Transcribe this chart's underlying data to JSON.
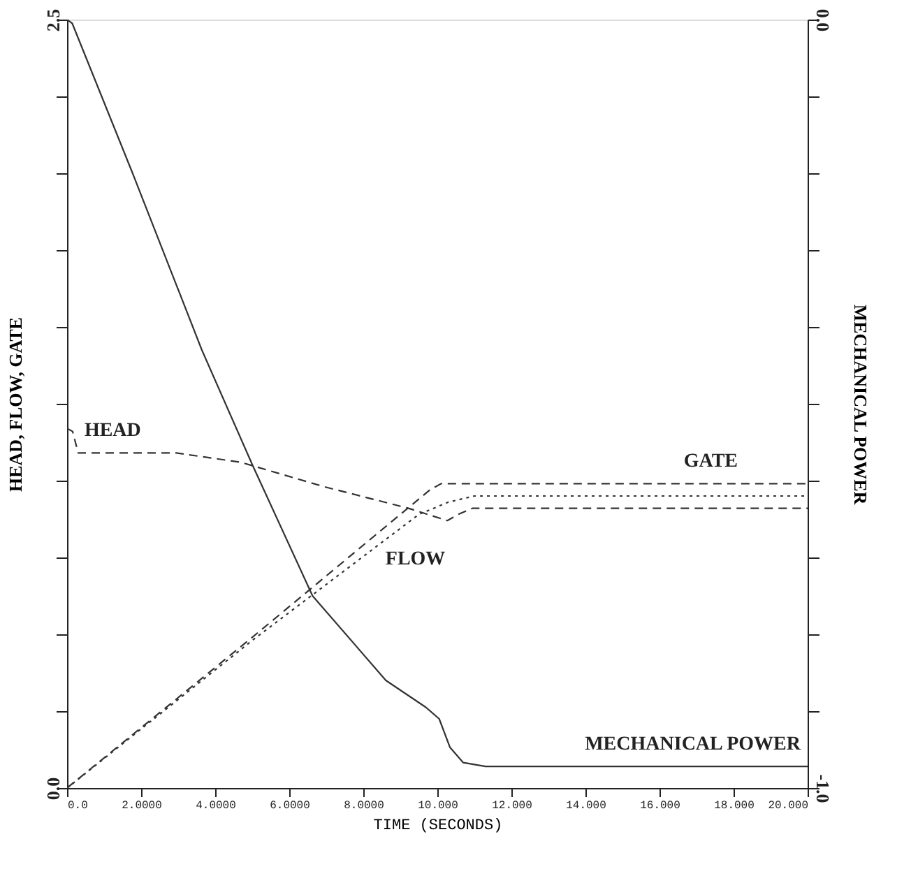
{
  "chart_data": {
    "type": "line",
    "xlabel": "TIME  (SECONDS)",
    "ylabel": "HEAD, FLOW, GATE",
    "y2label": "MECHANICAL POWER",
    "xlim": [
      0,
      20
    ],
    "xticks": [
      {
        "value": 0,
        "label": "0.0"
      },
      {
        "value": 2,
        "label": "2.0000"
      },
      {
        "value": 4,
        "label": "4.0000"
      },
      {
        "value": 6,
        "label": "6.0000"
      },
      {
        "value": 8,
        "label": "8.0000"
      },
      {
        "value": 10,
        "label": "10.000"
      },
      {
        "value": 12,
        "label": "12.000"
      },
      {
        "value": 14,
        "label": "14.000"
      },
      {
        "value": 16,
        "label": "16.000"
      },
      {
        "value": 18,
        "label": "18.000"
      },
      {
        "value": 20,
        "label": "20.000"
      }
    ],
    "ylim": [
      0,
      2.5
    ],
    "yticks": [
      {
        "value": 0,
        "label": "0.0"
      },
      {
        "value": 0.25,
        "label": null
      },
      {
        "value": 0.5,
        "label": null
      },
      {
        "value": 0.75,
        "label": null
      },
      {
        "value": 1.0,
        "label": null
      },
      {
        "value": 1.25,
        "label": null
      },
      {
        "value": 1.5,
        "label": null
      },
      {
        "value": 1.75,
        "label": null
      },
      {
        "value": 2.0,
        "label": null
      },
      {
        "value": 2.25,
        "label": null
      },
      2.5
    ],
    "y2lim": [
      -1.0,
      0.0
    ],
    "y2ticks": [
      {
        "value": -1,
        "label": "-1.0"
      },
      {
        "value": -0.9,
        "label": null
      },
      {
        "value": -0.8,
        "label": null
      },
      {
        "value": -0.7,
        "label": null
      },
      {
        "value": -0.6,
        "label": null
      },
      {
        "value": -0.5,
        "label": null
      },
      {
        "value": -0.4,
        "label": null
      },
      {
        "value": -0.3,
        "label": null
      },
      {
        "value": -0.2,
        "label": null
      },
      {
        "value": -0.1,
        "label": null
      },
      {
        "value": 0,
        "label": "0.0"
      }
    ],
    "grid": false,
    "series": [
      {
        "name": "HEAD",
        "color": "#333333",
        "line_style": "dashed",
        "x": [
          0,
          0.15,
          0.3,
          0.47,
          2.95,
          4.68,
          6.95,
          9.22,
          10.27,
          10.56,
          10.95,
          20
        ],
        "values": [
          1.17,
          1.16,
          1.09,
          1.09,
          1.09,
          1.06,
          0.98,
          0.91,
          0.87,
          0.89,
          0.91,
          0.91
        ]
      },
      {
        "name": "GATE",
        "color": "#333333",
        "line_style": "dashed",
        "x": [
          0,
          5,
          9.8,
          10.1,
          20
        ],
        "values": [
          0,
          0.49,
          0.97,
          0.99,
          0.99
        ]
      },
      {
        "name": "FLOW",
        "color": "#333333",
        "line_style": "dotted",
        "x": [
          0,
          5,
          9.5,
          10.3,
          11,
          20
        ],
        "values": [
          0,
          0.48,
          0.89,
          0.93,
          0.95,
          0.95
        ]
      },
      {
        "name": "MECHANICAL POWER",
        "color": "#333333",
        "line_style": "solid",
        "axis": "y2",
        "x": [
          0,
          0.14,
          1.77,
          3.64,
          5.01,
          6.63,
          8.61,
          9.69,
          10.05,
          10.34,
          10.7,
          11.3,
          20
        ],
        "values": [
          0,
          -0.005,
          -0.2,
          -0.43,
          -0.58,
          -0.75,
          -0.86,
          -0.895,
          -0.91,
          -0.947,
          -0.967,
          -0.972,
          -0.972
        ]
      }
    ]
  }
}
